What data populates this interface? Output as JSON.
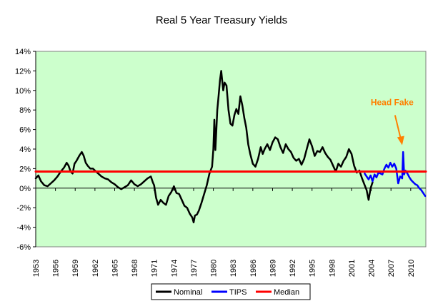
{
  "chart_data": {
    "type": "line",
    "title": "Real 5 Year Treasury Yields",
    "xlabel": "",
    "ylabel": "",
    "x_ticks": [
      "1953",
      "1956",
      "1959",
      "1962",
      "1965",
      "1968",
      "1971",
      "1974",
      "1977",
      "1980",
      "1983",
      "1986",
      "1989",
      "1992",
      "1995",
      "1998",
      "2001",
      "2004",
      "2007",
      "2010"
    ],
    "y_ticks": [
      "14%",
      "12%",
      "10%",
      "8%",
      "6%",
      "4%",
      "2%",
      "0%",
      "-2%",
      "-4%",
      "-6%"
    ],
    "xlim": [
      1953,
      2012.3
    ],
    "ylim": [
      -6,
      14
    ],
    "grid": false,
    "plot_background": "#ccffcc",
    "legend_position": "bottom",
    "series": [
      {
        "name": "Nominal",
        "color": "#000000",
        "x": [
          1953.0,
          1953.4,
          1953.8,
          1954.3,
          1954.8,
          1955.3,
          1955.8,
          1956.3,
          1956.8,
          1957.3,
          1957.7,
          1958.0,
          1958.3,
          1958.6,
          1958.9,
          1959.2,
          1959.6,
          1960.0,
          1960.3,
          1960.6,
          1960.9,
          1961.3,
          1961.7,
          1962.0,
          1962.5,
          1963.0,
          1963.5,
          1964.0,
          1964.5,
          1965.0,
          1965.5,
          1966.0,
          1966.5,
          1967.0,
          1967.5,
          1968.0,
          1968.5,
          1969.0,
          1969.5,
          1970.0,
          1970.5,
          1970.8,
          1971.0,
          1971.3,
          1971.6,
          1972.0,
          1972.4,
          1972.8,
          1973.2,
          1973.6,
          1974.0,
          1974.4,
          1974.8,
          1975.2,
          1975.6,
          1976.0,
          1976.4,
          1976.8,
          1977.0,
          1977.2,
          1977.5,
          1977.8,
          1978.2,
          1978.6,
          1979.0,
          1979.4,
          1979.8,
          1980.0,
          1980.15,
          1980.3,
          1980.45,
          1980.6,
          1980.8,
          1981.0,
          1981.2,
          1981.5,
          1981.7,
          1982.0,
          1982.3,
          1982.6,
          1982.9,
          1983.2,
          1983.5,
          1983.8,
          1984.1,
          1984.4,
          1984.7,
          1985.0,
          1985.3,
          1985.6,
          1986.0,
          1986.4,
          1986.8,
          1987.2,
          1987.5,
          1987.8,
          1988.2,
          1988.6,
          1989.0,
          1989.4,
          1989.8,
          1990.2,
          1990.6,
          1991.0,
          1991.4,
          1991.8,
          1992.2,
          1992.6,
          1993.0,
          1993.4,
          1993.8,
          1994.2,
          1994.6,
          1995.0,
          1995.4,
          1995.8,
          1996.2,
          1996.6,
          1997.0,
          1997.4,
          1997.8,
          1998.2,
          1998.6,
          1999.0,
          1999.4,
          1999.8,
          2000.2,
          2000.6,
          2001.0,
          2001.4,
          2001.8,
          2002.2,
          2002.6,
          2003.0,
          2003.3,
          2003.6,
          2003.9,
          2004.2
        ],
        "y": [
          1.0,
          1.3,
          0.7,
          0.3,
          0.2,
          0.5,
          0.8,
          1.2,
          1.7,
          2.1,
          2.6,
          2.3,
          1.7,
          1.5,
          2.5,
          2.8,
          3.3,
          3.7,
          3.3,
          2.6,
          2.3,
          2.0,
          2.0,
          1.8,
          1.5,
          1.2,
          1.0,
          0.9,
          0.6,
          0.4,
          0.1,
          -0.1,
          0.1,
          0.3,
          0.8,
          0.4,
          0.2,
          0.4,
          0.7,
          1.0,
          1.2,
          0.6,
          0.3,
          -1.0,
          -1.7,
          -1.2,
          -1.5,
          -1.7,
          -0.8,
          -0.4,
          0.2,
          -0.5,
          -0.6,
          -1.2,
          -1.8,
          -2.0,
          -2.6,
          -3.0,
          -3.5,
          -2.8,
          -2.7,
          -2.3,
          -1.5,
          -0.6,
          0.3,
          1.5,
          2.2,
          4.0,
          7.0,
          3.9,
          5.8,
          8.0,
          9.5,
          11.0,
          12.0,
          10.0,
          10.8,
          10.5,
          8.0,
          6.6,
          6.4,
          7.5,
          8.1,
          7.6,
          9.4,
          8.5,
          7.2,
          6.2,
          4.5,
          3.5,
          2.5,
          2.2,
          3.0,
          4.2,
          3.5,
          4.0,
          4.5,
          3.9,
          4.7,
          5.2,
          5.0,
          4.2,
          3.6,
          4.5,
          4.0,
          3.7,
          3.1,
          2.8,
          3.0,
          2.4,
          3.0,
          4.0,
          5.0,
          4.3,
          3.3,
          3.8,
          3.7,
          4.2,
          3.6,
          3.2,
          2.9,
          2.3,
          1.7,
          2.5,
          2.2,
          2.8,
          3.2,
          4.0,
          3.5,
          2.3,
          1.6,
          1.8,
          1.0,
          0.3,
          -0.2,
          -1.2,
          0.0,
          0.6
        ]
      },
      {
        "name": "TIPS",
        "color": "#0000ff",
        "x": [
          2003.0,
          2003.3,
          2003.6,
          2003.9,
          2004.2,
          2004.5,
          2004.8,
          2005.1,
          2005.4,
          2005.7,
          2006.0,
          2006.3,
          2006.6,
          2006.9,
          2007.2,
          2007.5,
          2007.8,
          2008.1,
          2008.4,
          2008.7,
          2008.85,
          2009.0,
          2009.2,
          2009.5,
          2009.8,
          2010.1,
          2010.4,
          2010.7,
          2011.0,
          2011.3,
          2011.6,
          2011.9,
          2012.2
        ],
        "y": [
          1.5,
          1.2,
          0.9,
          1.3,
          0.7,
          1.4,
          1.1,
          1.6,
          1.5,
          1.4,
          2.0,
          2.4,
          2.1,
          2.6,
          2.2,
          2.5,
          2.0,
          0.5,
          1.2,
          1.0,
          3.7,
          1.4,
          1.8,
          1.5,
          1.1,
          0.8,
          0.6,
          0.4,
          0.3,
          0.0,
          -0.2,
          -0.5,
          -0.8
        ]
      },
      {
        "name": "Median",
        "color": "#ff0000",
        "x": [
          1953.0,
          2012.3
        ],
        "y": [
          1.7,
          1.7
        ]
      }
    ],
    "annotations": [
      {
        "text": "Head Fake",
        "color": "#ff8000",
        "points_to": {
          "x": 2008.7,
          "y": 4.4
        }
      }
    ]
  }
}
